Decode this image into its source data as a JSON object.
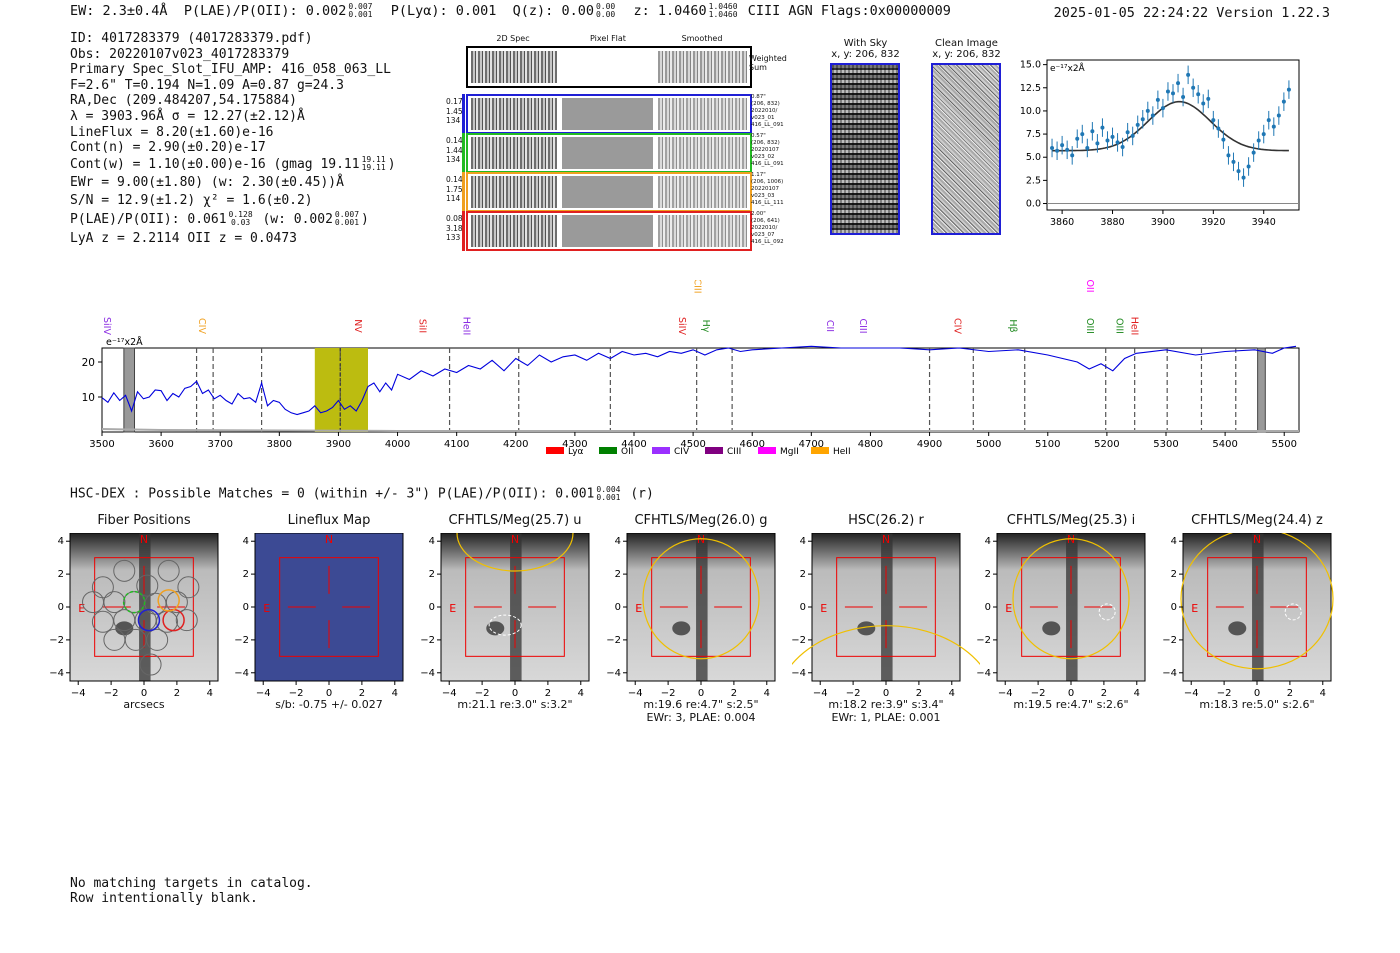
{
  "header": {
    "ew": "EW: 2.3±0.4Å",
    "plae_label": "P(LAE)/P(OII): 0.002",
    "plae_hi": "0.007",
    "plae_lo": "0.001",
    "plya": "P(Lyα): 0.001",
    "qz_label": "Q(z): 0.00",
    "qz_hi": "0.00",
    "qz_lo": "0.00",
    "z_label": "z: 1.0460",
    "z_hi": "1.0460",
    "z_lo": "1.0460",
    "tags": "CIII  AGN  Flags:0x00000009",
    "datetime": "2025-01-05 22:24:22  Version 1.22.3"
  },
  "info": {
    "id": "ID: 4017283379 (4017283379.pdf)",
    "obs": "Obs: 20220107v023_4017283379",
    "primary": "Primary Spec_Slot_IFU_AMP: 416_058_063_LL",
    "fiber": "F=2.6\"  T=0.194  N=1.09  A=0.87  g=24.3",
    "radec": "RA,Dec (209.484207,54.175884)",
    "lambda": "λ = 3903.96Å  σ = 12.27(±2.12)Å",
    "lineflux": "LineFlux = 8.20(±1.60)e-16",
    "contn": "Cont(n) = 2.90(±0.20)e-17",
    "contw": "Cont(w) = 1.10(±0.00)e-16 (gmag 19.11",
    "contw_hi": "19.11",
    "contw_lo": "19.11",
    "ewr": "EWr = 9.00(±1.80) (w: 2.30(±0.45))Å",
    "sn": "S/N = 12.9(±1.2)  χ² = 1.6(±0.2)",
    "plae": "P(LAE)/P(OII): 0.061",
    "plae_hi": "0.128",
    "plae_lo": "0.03",
    "plae_w": "(w: 0.002",
    "plae_w_hi": "0.007",
    "plae_w_lo": "0.001",
    "lya_z": "LyA z = 2.2114  OII z = 0.0473"
  },
  "spec2d": {
    "col_titles": [
      "2D Spec",
      "Pixel Flat",
      "Smoothed"
    ],
    "weighted_sum": "Weighted Sum",
    "rows": [
      {
        "left": [
          "0.17",
          "1.45",
          "134"
        ],
        "right": [
          "0.87\"",
          "(206, 832)",
          "2022010/",
          "v023_01",
          "416_LL_091"
        ],
        "color": "#1f1fd6"
      },
      {
        "left": [
          "0.14",
          "1.44",
          "134"
        ],
        "right": [
          "0.57\"",
          "(206, 832)",
          "20220107",
          "v023_02",
          "416_LL_091"
        ],
        "color": "#22bb22"
      },
      {
        "left": [
          "0.14",
          "1.75",
          "114"
        ],
        "right": [
          "1.17\"",
          "(206, 1006)",
          "20220107",
          "v023_03",
          "416_LL_111"
        ],
        "color": "#f0a020"
      },
      {
        "left": [
          "0.08",
          "3.18",
          "133"
        ],
        "right": [
          "2.00\"",
          "(206, 641)",
          "2022010/",
          "v023_07",
          "416_LL_092"
        ],
        "color": "#e02020"
      }
    ]
  },
  "sky": {
    "with_sky_title": "With Sky",
    "with_sky_xy": "x, y: 206, 832",
    "clean_title": "Clean Image",
    "clean_xy": "x, y: 206, 832"
  },
  "fit_plot": {
    "chart_data": {
      "type": "scatter",
      "title": "",
      "unit_label": "e⁻¹⁷x2Å",
      "xlim": [
        3854,
        3954
      ],
      "ylim": [
        -0.7,
        15.5
      ],
      "xticks": [
        3860,
        3880,
        3900,
        3920,
        3940
      ],
      "yticks": [
        0.0,
        2.5,
        5.0,
        7.5,
        10.0,
        12.5,
        15.0
      ],
      "ytick_labels": [
        "0.0",
        "2.5",
        "5.0",
        "7.5",
        "10.0",
        "12.5",
        "15.0"
      ],
      "x": [
        3856,
        3858,
        3860,
        3862,
        3864,
        3866,
        3868,
        3870,
        3872,
        3874,
        3876,
        3878,
        3880,
        3882,
        3884,
        3886,
        3888,
        3890,
        3892,
        3894,
        3896,
        3898,
        3900,
        3902,
        3904,
        3906,
        3908,
        3910,
        3912,
        3914,
        3916,
        3918,
        3920,
        3922,
        3924,
        3926,
        3928,
        3930,
        3932,
        3934,
        3936,
        3938,
        3940,
        3942,
        3944,
        3946,
        3948,
        3950
      ],
      "y": [
        6.0,
        5.7,
        6.3,
        5.8,
        5.2,
        7.0,
        7.5,
        6.0,
        7.8,
        6.5,
        8.2,
        6.8,
        7.2,
        6.6,
        6.1,
        7.7,
        7.3,
        8.5,
        9.1,
        10.0,
        9.5,
        11.2,
        10.3,
        12.1,
        11.9,
        13.0,
        11.5,
        13.9,
        12.5,
        11.8,
        10.8,
        11.3,
        9.0,
        8.1,
        6.9,
        5.2,
        4.5,
        3.5,
        2.8,
        4.0,
        5.5,
        6.8,
        7.5,
        9.0,
        8.3,
        9.5,
        11.0,
        12.3
      ],
      "fit": {
        "center": 3906.5,
        "sigma": 12.27,
        "amplitude": 5.3,
        "baseline": 5.7
      }
    }
  },
  "full_spectrum": {
    "chart_data": {
      "type": "line",
      "unit_label": "e⁻¹⁷x2Å",
      "xlim": [
        3500,
        5525
      ],
      "ylim": [
        0,
        24
      ],
      "xticks": [
        3500,
        3600,
        3700,
        3800,
        3900,
        4000,
        4100,
        4200,
        4300,
        4400,
        4500,
        4600,
        4700,
        4800,
        4900,
        5000,
        5100,
        5200,
        5300,
        5400,
        5500
      ],
      "yticks": [
        10,
        20
      ],
      "dashed_lines": [
        3660,
        3688,
        3770,
        3903,
        4088,
        4205,
        4360,
        4506,
        4566,
        4900,
        4974,
        5061,
        5198,
        5247,
        5302,
        5360,
        5418
      ],
      "highlight_band": [
        3860,
        3950
      ],
      "hatched_bands": [
        [
          3537,
          3555
        ],
        [
          5455,
          5468
        ]
      ],
      "line_labels": [
        {
          "name": "SiIV",
          "wave": 3527,
          "color": "#8a2be2",
          "level": "low"
        },
        {
          "name": "CIV",
          "wave": 3688,
          "color": "#f0a020",
          "level": "low"
        },
        {
          "name": "NV",
          "wave": 3952,
          "color": "#e02020",
          "level": "low"
        },
        {
          "name": "SiII",
          "wave": 4061,
          "color": "#e02020",
          "level": "low"
        },
        {
          "name": "HeII",
          "wave": 4135,
          "color": "#8a2be2",
          "level": "low"
        },
        {
          "name": "SiIV",
          "wave": 4500,
          "color": "#e02020",
          "level": "low"
        },
        {
          "name": "CIII",
          "wave": 4526,
          "color": "#f0a020",
          "level": "high"
        },
        {
          "name": "Hγ",
          "wave": 4540,
          "color": "#228b22",
          "level": "low"
        },
        {
          "name": "CII",
          "wave": 4750,
          "color": "#8a2be2",
          "level": "low"
        },
        {
          "name": "CIII",
          "wave": 4806,
          "color": "#8a2be2",
          "level": "low"
        },
        {
          "name": "CIV",
          "wave": 4966,
          "color": "#e02020",
          "level": "low"
        },
        {
          "name": "Hβ",
          "wave": 5060,
          "color": "#228b22",
          "level": "low"
        },
        {
          "name": "OII",
          "wave": 5190,
          "color": "#ff00ff",
          "level": "high"
        },
        {
          "name": "OIII",
          "wave": 5190,
          "color": "#228b22",
          "level": "low"
        },
        {
          "name": "OIII",
          "wave": 5240,
          "color": "#228b22",
          "level": "low"
        },
        {
          "name": "HeII",
          "wave": 5265,
          "color": "#e02020",
          "level": "low"
        }
      ],
      "legend": [
        {
          "label": "Lyα",
          "color": "#ff0000"
        },
        {
          "label": "OII",
          "color": "#008000"
        },
        {
          "label": "CIV",
          "color": "#9b30ff"
        },
        {
          "label": "CIII",
          "color": "#800080"
        },
        {
          "label": "MgII",
          "color": "#ff00ff"
        },
        {
          "label": "HeII",
          "color": "#ffa500"
        }
      ],
      "x": [
        3500,
        3510,
        3520,
        3530,
        3540,
        3550,
        3560,
        3570,
        3580,
        3590,
        3600,
        3610,
        3620,
        3630,
        3640,
        3650,
        3660,
        3670,
        3680,
        3690,
        3700,
        3710,
        3720,
        3730,
        3740,
        3750,
        3760,
        3770,
        3780,
        3790,
        3800,
        3810,
        3820,
        3830,
        3840,
        3850,
        3860,
        3870,
        3880,
        3890,
        3900,
        3910,
        3920,
        3930,
        3940,
        3950,
        3960,
        3970,
        3980,
        3990,
        4000,
        4020,
        4040,
        4060,
        4080,
        4100,
        4120,
        4140,
        4160,
        4180,
        4200,
        4220,
        4240,
        4260,
        4280,
        4300,
        4320,
        4340,
        4360,
        4380,
        4400,
        4420,
        4440,
        4460,
        4480,
        4500,
        4520,
        4540,
        4560,
        4580,
        4600,
        4650,
        4700,
        4750,
        4800,
        4850,
        4900,
        4950,
        5000,
        5050,
        5100,
        5150,
        5170,
        5190,
        5210,
        5230,
        5250,
        5300,
        5350,
        5400,
        5450,
        5480,
        5500,
        5520
      ],
      "y": [
        9.8,
        8.5,
        11.2,
        9.0,
        10.5,
        6.0,
        11.5,
        9.5,
        10.0,
        12.0,
        11.8,
        9.0,
        11.0,
        10.0,
        12.5,
        13.0,
        14.5,
        11.0,
        12.0,
        9.5,
        10.5,
        9.0,
        8.0,
        11.0,
        9.5,
        9.8,
        8.5,
        14.0,
        7.5,
        9.0,
        8.5,
        6.5,
        5.5,
        5.0,
        5.5,
        6.0,
        7.5,
        5.5,
        6.0,
        7.0,
        9.0,
        6.5,
        7.5,
        6.0,
        9.0,
        13.0,
        14.0,
        11.5,
        14.0,
        12.0,
        16.5,
        15.0,
        17.5,
        16.0,
        18.0,
        17.0,
        19.0,
        18.0,
        20.5,
        17.5,
        21.0,
        19.0,
        22.0,
        20.0,
        21.5,
        22.0,
        20.5,
        22.5,
        21.0,
        23.0,
        22.0,
        22.5,
        21.5,
        23.0,
        22.5,
        23.5,
        22.0,
        23.5,
        24.0,
        23.0,
        23.5,
        24.0,
        24.5,
        24.0,
        24.0,
        24.0,
        23.5,
        24.0,
        23.0,
        23.5,
        22.0,
        20.0,
        18.0,
        19.5,
        17.5,
        21.0,
        22.5,
        23.5,
        22.0,
        23.0,
        23.5,
        22.5,
        24.0,
        24.5
      ]
    }
  },
  "hscdex": {
    "text": "HSC-DEX : Possible Matches = 0 (within +/- 3\")  P(LAE)/P(OII): 0.001",
    "hi": "0.004",
    "lo": "0.001",
    "band": "(r)"
  },
  "cutouts": {
    "tick_labels": [
      "−4",
      "−2",
      "0",
      "2",
      "4"
    ],
    "n_label": "N",
    "e_label": "E",
    "panels": [
      {
        "title": "Fiber Positions",
        "cap1": "arcsecs",
        "cap2": ""
      },
      {
        "title": "Lineflux Map",
        "cap1": "s/b: -0.75 +/- 0.027",
        "cap2": ""
      },
      {
        "title": "CFHTLS/Meg(25.7) u",
        "cap1": "m:21.1  re:3.0\"  s:3.2\"",
        "cap2": ""
      },
      {
        "title": "CFHTLS/Meg(26.0) g",
        "cap1": "m:19.6  re:4.7\"  s:2.5\"",
        "cap2": "EWr: 3, PLAE: 0.004"
      },
      {
        "title": "HSC(26.2) r",
        "cap1": "m:18.2  re:3.9\"  s:3.4\"",
        "cap2": "EWr: 1, PLAE: 0.001"
      },
      {
        "title": "CFHTLS/Meg(25.3) i",
        "cap1": "m:19.5  re:4.7\"  s:2.6\"",
        "cap2": ""
      },
      {
        "title": "CFHTLS/Meg(24.4) z",
        "cap1": "m:18.3  re:5.0\"  s:2.6\"",
        "cap2": ""
      }
    ]
  },
  "catalog": {
    "line1": "No matching targets in catalog.",
    "line2": "Row intentionally blank."
  }
}
